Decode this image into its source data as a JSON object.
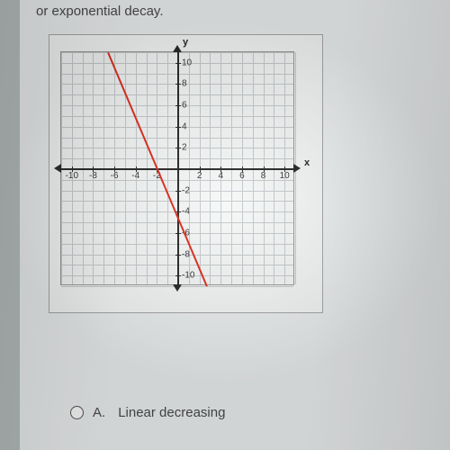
{
  "question": {
    "text_fragment": "or exponential decay."
  },
  "chart": {
    "type": "line",
    "background_color": "#f6f8f8",
    "border_color": "#a8a8a8",
    "grid_color": "#c8ccce",
    "axis_color": "#2a2a2a",
    "xlim": [
      -11,
      11
    ],
    "ylim": [
      -11,
      11
    ],
    "x_ticks": [
      -10,
      -8,
      -6,
      -4,
      -2,
      2,
      4,
      6,
      8,
      10
    ],
    "y_ticks": [
      -10,
      -8,
      -6,
      -4,
      -2,
      2,
      4,
      6,
      8,
      10
    ],
    "x_axis_label": "x",
    "y_axis_label": "y",
    "tick_fontsize": 10,
    "label_fontsize": 11,
    "gridline_step": 1,
    "line": {
      "color": "#e03020",
      "width": 2,
      "points": [
        [
          -6.5,
          11
        ],
        [
          2.8,
          -11
        ]
      ]
    }
  },
  "option_a": {
    "letter": "A.",
    "text": "Linear decreasing"
  }
}
